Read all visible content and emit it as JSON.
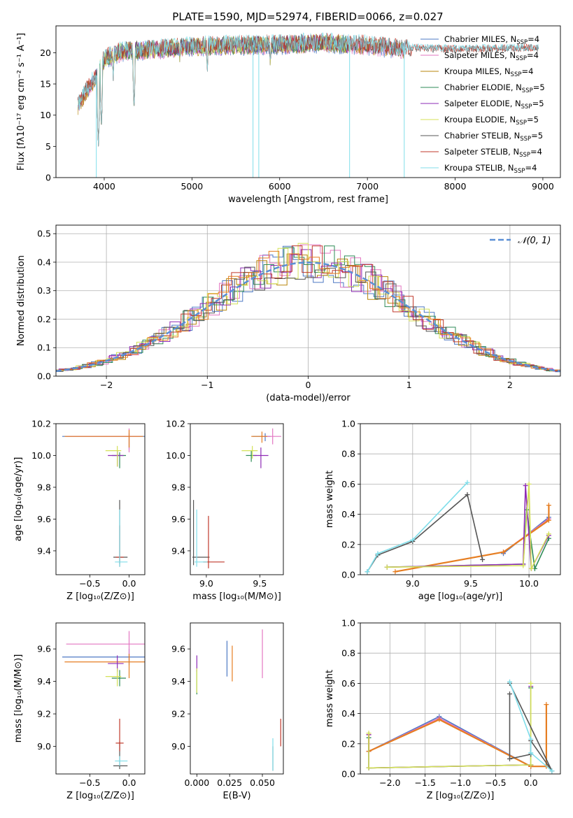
{
  "figure": {
    "title": "PLATE=1590, MJD=52974, FIBERID=0066, z=0.027"
  },
  "colors": {
    "Chabrier MILES": "#4e79c4",
    "Salpeter MILES": "#e377c2",
    "Kroupa MILES": "#b8860b",
    "Chabrier ELODIE": "#2e8b57",
    "Salpeter ELODIE": "#8e2bb5",
    "Kroupa ELODIE": "#d4e157",
    "Chabrier STELIB": "#555555",
    "Salpeter STELIB": "#c0392b",
    "Kroupa STELIB": "#80deea",
    "orange": "#e67e22",
    "gaussian": "#5a8fd6"
  },
  "chart_data": [
    {
      "id": "spectrum",
      "type": "line",
      "title": "PLATE=1590, MJD=52974, FIBERID=0066, z=0.027",
      "xlabel": "wavelength [Angstrom, rest frame]",
      "ylabel": "Flux [fλ10⁻¹⁷ erg cm⁻² s⁻¹ A⁻¹]",
      "xlim": [
        3450,
        9200
      ],
      "ylim": [
        0,
        24.3
      ],
      "xticks": [
        4000,
        5000,
        6000,
        7000,
        8000,
        9000
      ],
      "yticks": [
        0,
        5,
        10,
        15,
        20
      ],
      "legend_position": "upper right",
      "series": [
        {
          "name": "Chabrier MILES, N_SSP=4",
          "color_key": "Chabrier MILES",
          "x_range": [
            3700,
            7420
          ]
        },
        {
          "name": "Salpeter MILES, N_SSP=4",
          "color_key": "Salpeter MILES",
          "x_range": [
            3700,
            7420
          ]
        },
        {
          "name": "Kroupa MILES, N_SSP=4",
          "color_key": "Kroupa MILES",
          "x_range": [
            3700,
            7420
          ]
        },
        {
          "name": "Chabrier ELODIE, N_SSP=5",
          "color_key": "Chabrier ELODIE",
          "x_range": [
            3900,
            6800
          ]
        },
        {
          "name": "Salpeter ELODIE, N_SSP=5",
          "color_key": "Salpeter ELODIE",
          "x_range": [
            3900,
            6800
          ]
        },
        {
          "name": "Kroupa ELODIE, N_SSP=5",
          "color_key": "Kroupa ELODIE",
          "x_range": [
            3900,
            6800
          ]
        },
        {
          "name": "Chabrier STELIB, N_SSP=5",
          "color_key": "Chabrier STELIB",
          "x_range": [
            3700,
            8950
          ]
        },
        {
          "name": "Salpeter STELIB, N_SSP=4",
          "color_key": "Salpeter STELIB",
          "x_range": [
            3700,
            8950
          ]
        },
        {
          "name": "Kroupa STELIB, N_SSP=4",
          "color_key": "Kroupa STELIB",
          "x_range": [
            3700,
            8950
          ]
        }
      ],
      "continuum": {
        "x": [
          3700,
          3800,
          3900,
          4000,
          4200,
          4500,
          5000,
          5500,
          6000,
          6500,
          7000,
          7400,
          8000,
          8500,
          8950
        ],
        "y": [
          11.5,
          14,
          16,
          19,
          20.2,
          20.5,
          21,
          21.2,
          21.3,
          21.6,
          21.2,
          20.6,
          20.4,
          20.5,
          20.6
        ]
      },
      "absorption_features": [
        {
          "x": 3933,
          "y": 4.5
        },
        {
          "x": 3968,
          "y": 7.5
        },
        {
          "x": 4102,
          "y": 15.5
        },
        {
          "x": 4340,
          "y": 10.5
        },
        {
          "x": 4861,
          "y": 18
        },
        {
          "x": 5175,
          "y": 16.5
        },
        {
          "x": 5893,
          "y": 17.5
        }
      ],
      "spikes": [
        {
          "x": 5696,
          "y": 0
        },
        {
          "x": 5762,
          "y": 0
        },
        {
          "x": 6797,
          "y": 0
        },
        {
          "x": 7420,
          "y": 0
        },
        {
          "x": 3910,
          "y": 0
        }
      ]
    },
    {
      "id": "residuals",
      "type": "histogram",
      "xlabel": "(data-model)/error",
      "ylabel": "Normed distribution",
      "xlim": [
        -2.5,
        2.5
      ],
      "ylim": [
        0,
        0.53
      ],
      "xticks": [
        -2,
        -1,
        0,
        1,
        2
      ],
      "yticks": [
        0.0,
        0.1,
        0.2,
        0.3,
        0.4,
        0.5
      ],
      "grid": true,
      "bin_width": 0.1,
      "overlay": {
        "name": "N(0, 1)",
        "legend_label": "𝒩(0, 1)",
        "style": "dashed",
        "color_key": "gaussian"
      },
      "legend_position": "upper right"
    },
    {
      "id": "age-vs-Z",
      "type": "errorbar",
      "xlabel": "Z [log₁₀(Z/Z⊙)]",
      "ylabel": "age  [log₁₀(age/yr)]",
      "xlim": [
        -0.93,
        0.2
      ],
      "ylim": [
        9.25,
        10.2
      ],
      "xticks": [
        -0.5,
        0.0
      ],
      "yticks": [
        9.4,
        9.6,
        9.8,
        10.0,
        10.2
      ],
      "points": [
        {
          "color_key": "Chabrier MILES",
          "x": 0.0,
          "y": 10.12,
          "xerr": [
            0.85,
            0.2
          ],
          "yerr": [
            0.08,
            0.02
          ]
        },
        {
          "color_key": "Salpeter MILES",
          "x": 0.0,
          "y": 10.12,
          "xerr": [
            0.8,
            0.15
          ],
          "yerr": [
            0.1,
            0.05
          ]
        },
        {
          "color_key": "orange",
          "x": 0.0,
          "y": 10.12,
          "xerr": [
            0.82,
            0.18
          ],
          "yerr": [
            0.07,
            0.04
          ]
        },
        {
          "color_key": "Chabrier ELODIE",
          "x": -0.12,
          "y": 10.0,
          "xerr": [
            0.1,
            0.08
          ],
          "yerr": [
            0.08,
            0.02
          ]
        },
        {
          "color_key": "Salpeter ELODIE",
          "x": -0.15,
          "y": 10.0,
          "xerr": [
            0.12,
            0.08
          ],
          "yerr": [
            0.07,
            0.03
          ]
        },
        {
          "color_key": "Kroupa ELODIE",
          "x": -0.15,
          "y": 10.03,
          "xerr": [
            0.15,
            0.05
          ],
          "yerr": [
            0.1,
            0.03
          ]
        },
        {
          "color_key": "Chabrier STELIB",
          "x": -0.12,
          "y": 9.36,
          "xerr": [
            0.08,
            0.1
          ],
          "yerr": [
            0.06,
            0.36
          ]
        },
        {
          "color_key": "Salpeter STELIB",
          "x": -0.12,
          "y": 9.36,
          "xerr": [
            0.05,
            0.05
          ],
          "yerr": [
            0.04,
            0.2
          ]
        },
        {
          "color_key": "Kroupa STELIB",
          "x": -0.12,
          "y": 9.33,
          "xerr": [
            0.06,
            0.1
          ],
          "yerr": [
            0.03,
            0.33
          ]
        }
      ]
    },
    {
      "id": "age-vs-mass",
      "type": "errorbar",
      "xlabel": "mass [log₁₀(M/M⊙)]",
      "ylabel": "",
      "xlim": [
        8.85,
        9.72
      ],
      "ylim": [
        9.25,
        10.2
      ],
      "xticks": [
        9.0,
        9.5
      ],
      "yticks": [
        9.4,
        9.6,
        9.8,
        10.0,
        10.2
      ],
      "points": [
        {
          "color_key": "Chabrier MILES",
          "x": 9.55,
          "y": 10.12,
          "xerr": [
            0.12,
            0.05
          ],
          "yerr": [
            0.03,
            0.02
          ]
        },
        {
          "color_key": "Salpeter MILES",
          "x": 9.62,
          "y": 10.12,
          "xerr": [
            0.1,
            0.08
          ],
          "yerr": [
            0.05,
            0.05
          ]
        },
        {
          "color_key": "orange",
          "x": 9.52,
          "y": 10.12,
          "xerr": [
            0.1,
            0.05
          ],
          "yerr": [
            0.04,
            0.03
          ]
        },
        {
          "color_key": "Chabrier ELODIE",
          "x": 9.42,
          "y": 10.0,
          "xerr": [
            0.05,
            0.05
          ],
          "yerr": [
            0.04,
            0.03
          ]
        },
        {
          "color_key": "Salpeter ELODIE",
          "x": 9.51,
          "y": 10.0,
          "xerr": [
            0.07,
            0.07
          ],
          "yerr": [
            0.08,
            0.05
          ]
        },
        {
          "color_key": "Kroupa ELODIE",
          "x": 9.43,
          "y": 10.03,
          "xerr": [
            0.1,
            0.05
          ],
          "yerr": [
            0.05,
            0.03
          ]
        },
        {
          "color_key": "Chabrier STELIB",
          "x": 8.88,
          "y": 9.36,
          "xerr": [
            0.01,
            0.15
          ],
          "yerr": [
            0.05,
            0.36
          ]
        },
        {
          "color_key": "Salpeter STELIB",
          "x": 9.02,
          "y": 9.33,
          "xerr": [
            0.05,
            0.15
          ],
          "yerr": [
            0.04,
            0.29
          ]
        },
        {
          "color_key": "Kroupa STELIB",
          "x": 8.91,
          "y": 9.33,
          "xerr": [
            0.02,
            0.1
          ],
          "yerr": [
            0.03,
            0.33
          ]
        }
      ]
    },
    {
      "id": "weight-vs-age",
      "type": "line",
      "xlabel": "age  [log₁₀(age/yr)]",
      "ylabel": "mass weight",
      "xlim": [
        8.55,
        10.27
      ],
      "ylim": [
        0,
        1.0
      ],
      "xticks": [
        9.0,
        9.5,
        10.0
      ],
      "yticks": [
        0.0,
        0.2,
        0.4,
        0.6,
        0.8,
        1.0
      ],
      "grid": true,
      "series": [
        {
          "color_key": "Chabrier MILES",
          "x": [
            9.78,
            10.17
          ],
          "y": [
            0.14,
            0.38
          ]
        },
        {
          "color_key": "Salpeter MILES",
          "x": [
            9.78,
            10.17
          ],
          "y": [
            0.15,
            0.37
          ]
        },
        {
          "color_key": "orange",
          "x": [
            8.85,
            9.78,
            10.17,
            10.17
          ],
          "y": [
            0.02,
            0.15,
            0.36,
            0.46
          ]
        },
        {
          "color_key": "Chabrier ELODIE",
          "x": [
            8.78,
            9.95,
            9.98,
            10.05,
            10.17
          ],
          "y": [
            0.05,
            0.07,
            0.43,
            0.04,
            0.24
          ]
        },
        {
          "color_key": "Salpeter ELODIE",
          "x": [
            8.78,
            9.95,
            9.97,
            10.02,
            10.17
          ],
          "y": [
            0.05,
            0.07,
            0.59,
            0.04,
            0.26
          ]
        },
        {
          "color_key": "Kroupa ELODIE",
          "x": [
            8.78,
            9.95,
            10.0,
            10.02,
            10.17
          ],
          "y": [
            0.05,
            0.06,
            0.6,
            0.04,
            0.27
          ]
        },
        {
          "color_key": "Chabrier STELIB",
          "x": [
            8.61,
            8.7,
            9.0,
            9.47,
            9.6
          ],
          "y": [
            0.02,
            0.13,
            0.22,
            0.53,
            0.1
          ]
        },
        {
          "color_key": "Kroupa STELIB",
          "x": [
            8.61,
            8.7,
            9.0,
            9.47
          ],
          "y": [
            0.02,
            0.14,
            0.23,
            0.61
          ]
        }
      ]
    },
    {
      "id": "mass-vs-Z",
      "type": "errorbar",
      "xlabel": "Z [log₁₀(Z/Z⊙)]",
      "ylabel": "mass [log₁₀(M/M⊙)]",
      "xlim": [
        -0.93,
        0.2
      ],
      "ylim": [
        8.83,
        9.76
      ],
      "xticks": [
        -0.5,
        0.0
      ],
      "yticks": [
        9.0,
        9.2,
        9.4,
        9.6
      ],
      "points": [
        {
          "color_key": "Chabrier MILES",
          "x": 0.0,
          "y": 9.55,
          "xerr": [
            0.85,
            0.2
          ],
          "yerr": [
            0.05,
            0.05
          ]
        },
        {
          "color_key": "Salpeter MILES",
          "x": 0.0,
          "y": 9.63,
          "xerr": [
            0.8,
            0.2
          ],
          "yerr": [
            0.1,
            0.08
          ]
        },
        {
          "color_key": "orange",
          "x": 0.0,
          "y": 9.52,
          "xerr": [
            0.82,
            0.2
          ],
          "yerr": [
            0.1,
            0.05
          ]
        },
        {
          "color_key": "Chabrier ELODIE",
          "x": -0.12,
          "y": 9.42,
          "xerr": [
            0.1,
            0.08
          ],
          "yerr": [
            0.05,
            0.05
          ]
        },
        {
          "color_key": "Salpeter ELODIE",
          "x": -0.15,
          "y": 9.51,
          "xerr": [
            0.12,
            0.08
          ],
          "yerr": [
            0.05,
            0.05
          ]
        },
        {
          "color_key": "Kroupa ELODIE",
          "x": -0.15,
          "y": 9.43,
          "xerr": [
            0.15,
            0.05
          ],
          "yerr": [
            0.06,
            0.05
          ]
        },
        {
          "color_key": "Chabrier STELIB",
          "x": -0.12,
          "y": 8.88,
          "xerr": [
            0.08,
            0.1
          ],
          "yerr": [
            0.02,
            0.15
          ]
        },
        {
          "color_key": "Salpeter STELIB",
          "x": -0.12,
          "y": 9.02,
          "xerr": [
            0.05,
            0.05
          ],
          "yerr": [
            0.05,
            0.15
          ]
        },
        {
          "color_key": "Kroupa STELIB",
          "x": -0.12,
          "y": 8.91,
          "xerr": [
            0.06,
            0.1
          ],
          "yerr": [
            0.03,
            0.03
          ]
        }
      ]
    },
    {
      "id": "mass-vs-EBV",
      "type": "errorbar",
      "xlabel": "E(B-V)",
      "ylabel": "",
      "xlim": [
        -0.005,
        0.066
      ],
      "ylim": [
        8.83,
        9.76
      ],
      "xticks": [
        0.0,
        0.025,
        0.05
      ],
      "yticks": [
        9.0,
        9.2,
        9.4,
        9.6
      ],
      "points": [
        {
          "color_key": "Chabrier MILES",
          "x": 0.023,
          "y": 9.53,
          "yerr": [
            0.1,
            0.12
          ]
        },
        {
          "color_key": "Salpeter MILES",
          "x": 0.05,
          "y": 9.62,
          "yerr": [
            0.2,
            0.1
          ]
        },
        {
          "color_key": "orange",
          "x": 0.027,
          "y": 9.52,
          "yerr": [
            0.12,
            0.1
          ]
        },
        {
          "color_key": "Chabrier ELODIE",
          "x": 0.0,
          "y": 9.42,
          "yerr": [
            0.1,
            0.05
          ]
        },
        {
          "color_key": "Salpeter ELODIE",
          "x": 0.0,
          "y": 9.51,
          "yerr": [
            0.05,
            0.05
          ]
        },
        {
          "color_key": "Kroupa ELODIE",
          "x": 0.0,
          "y": 9.43,
          "yerr": [
            0.1,
            0.05
          ]
        },
        {
          "color_key": "Chabrier STELIB",
          "x": 0.058,
          "y": 8.95,
          "yerr": [
            0.1,
            0.05
          ]
        },
        {
          "color_key": "Salpeter STELIB",
          "x": 0.064,
          "y": 9.08,
          "yerr": [
            0.08,
            0.09
          ]
        },
        {
          "color_key": "Kroupa STELIB",
          "x": 0.058,
          "y": 8.95,
          "yerr": [
            0.1,
            0.1
          ]
        }
      ]
    },
    {
      "id": "weight-vs-Z",
      "type": "line",
      "xlabel": "Z [log₁₀(Z/Z⊙)]",
      "ylabel": "mass weight",
      "xlim": [
        -2.42,
        0.42
      ],
      "ylim": [
        0,
        1.0
      ],
      "xticks": [
        -2.0,
        -1.5,
        -1.0,
        -0.5,
        0.0
      ],
      "yticks": [
        0.0,
        0.2,
        0.4,
        0.6,
        0.8,
        1.0
      ],
      "grid": true,
      "series": [
        {
          "color_key": "Chabrier MILES",
          "x": [
            -2.3,
            -1.3,
            0.0
          ],
          "y": [
            0.15,
            0.38,
            0.05
          ]
        },
        {
          "color_key": "Salpeter MILES",
          "x": [
            -2.3,
            -1.3,
            0.0
          ],
          "y": [
            0.15,
            0.37,
            0.05
          ]
        },
        {
          "color_key": "orange",
          "x": [
            -2.3,
            -2.3,
            -1.3,
            0.0,
            0.22,
            0.22
          ],
          "y": [
            0.26,
            0.15,
            0.36,
            0.05,
            0.05,
            0.46
          ]
        },
        {
          "color_key": "Chabrier ELODIE",
          "x": [
            -2.3,
            -2.3,
            0.0,
            0.0
          ],
          "y": [
            0.24,
            0.04,
            0.06,
            0.57
          ]
        },
        {
          "color_key": "Salpeter ELODIE",
          "x": [
            -2.3,
            -2.3,
            0.0,
            0.0
          ],
          "y": [
            0.26,
            0.04,
            0.06,
            0.58
          ]
        },
        {
          "color_key": "Kroupa ELODIE",
          "x": [
            -2.3,
            -2.3,
            0.0,
            0.0
          ],
          "y": [
            0.27,
            0.04,
            0.06,
            0.6
          ]
        },
        {
          "color_key": "Chabrier STELIB",
          "x": [
            -0.3,
            -0.3,
            0.0,
            0.0,
            0.3,
            -0.3
          ],
          "y": [
            0.53,
            0.1,
            0.13,
            0.22,
            0.02,
            0.6
          ]
        },
        {
          "color_key": "Kroupa STELIB",
          "x": [
            -0.3,
            0.0,
            0.0,
            0.3
          ],
          "y": [
            0.61,
            0.23,
            0.14,
            0.02
          ]
        }
      ]
    }
  ]
}
